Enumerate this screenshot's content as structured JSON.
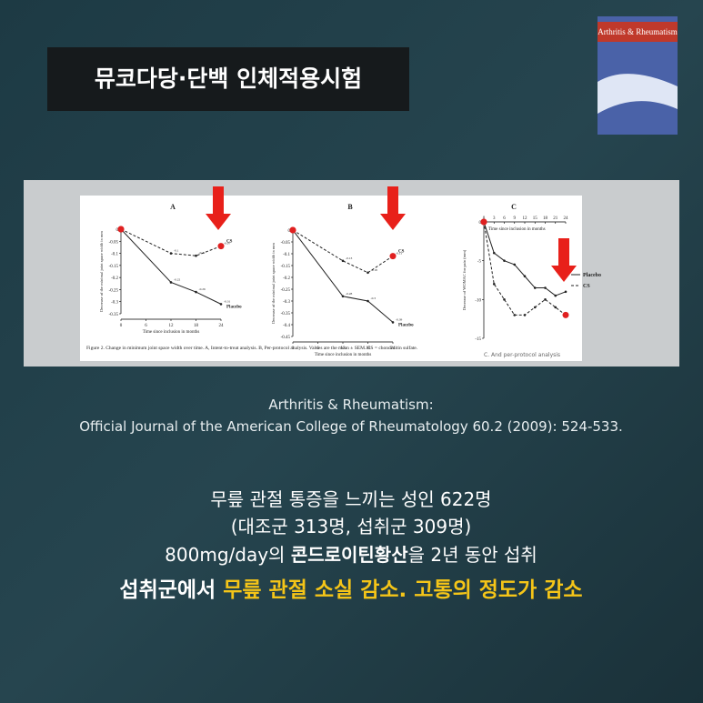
{
  "badge": "뮤코다당·단백 인체적용시험",
  "journal_cover": {
    "title": "Arthritis & Rheumatism"
  },
  "figure": {
    "panels": [
      {
        "label": "A",
        "y_label": "Decrease of the minimal joint space width in mm",
        "x_label": "Time since inclusion in months",
        "x": [
          0,
          12,
          18,
          24
        ],
        "xlim": [
          0,
          24
        ],
        "xticks": [
          0,
          6,
          12,
          18,
          24
        ],
        "ylim": [
          0,
          -0.35
        ],
        "yticks": [
          0,
          -0.05,
          -0.1,
          -0.15,
          -0.2,
          -0.25,
          -0.3,
          -0.35
        ],
        "series": [
          {
            "name": "CS",
            "values": [
              0,
              -0.1,
              -0.11,
              -0.07
            ]
          },
          {
            "name": "Placebo",
            "values": [
              0,
              -0.22,
              -0.26,
              -0.31
            ]
          }
        ]
      },
      {
        "label": "B",
        "y_label": "Decrease of the minimal joint space width in mm",
        "x_label": "Time since inclusion in months",
        "x": [
          0,
          12,
          18,
          24
        ],
        "xlim": [
          0,
          24
        ],
        "xticks": [
          0,
          6,
          12,
          18,
          24
        ],
        "ylim": [
          0,
          -0.45
        ],
        "yticks": [
          0,
          -0.05,
          -0.1,
          -0.15,
          -0.2,
          -0.25,
          -0.3,
          -0.35,
          -0.4,
          -0.45
        ],
        "series": [
          {
            "name": "CS",
            "values": [
              0,
              -0.13,
              -0.18,
              -0.11
            ]
          },
          {
            "name": "Placebo",
            "values": [
              0,
              -0.28,
              -0.3,
              -0.39
            ]
          }
        ]
      },
      {
        "label": "C",
        "y_label": "Decrease of WOMAC for pain (mm)",
        "x_label": "Time since inclusion in months",
        "x": [
          0,
          3,
          6,
          9,
          12,
          15,
          18,
          21,
          24
        ],
        "xlim": [
          0,
          24
        ],
        "xticks": [
          0,
          3,
          6,
          9,
          12,
          15,
          18,
          21,
          24
        ],
        "ylim": [
          0,
          -15
        ],
        "yticks": [
          0,
          -5,
          -10,
          -15
        ],
        "series": [
          {
            "name": "Placebo",
            "values": [
              0,
              -4,
              -5,
              -5.5,
              -7,
              -8.5,
              -8.5,
              -9.5,
              -9
            ]
          },
          {
            "name": "CS",
            "values": [
              0,
              -8,
              -10,
              -12,
              -12,
              -11,
              -10,
              -11,
              -12
            ]
          }
        ],
        "note": "C. And per-protocol analysis"
      }
    ],
    "caption": "Figure 2. Change in minimum joint space width over time. A, Intent-to-treat analysis. B, Per-protocol analysis. Values are the mean ± SEM. CS = chondroitin sulfate."
  },
  "citation": [
    "Arthritis & Rheumatism:",
    "Official Journal of the American College of Rheumatology 60.2 (2009): 524-533."
  ],
  "body": {
    "line1": "무릎 관절 통증을 느끼는 성인 622명",
    "line2": "(대조군 313명, 섭취군 309명)",
    "line3": [
      "800mg/day의 ",
      "콘드로이틴황산",
      "을 2년 동안 섭취"
    ],
    "line4": [
      "섭취군에서 ",
      "무릎 관절 소실 감소. 고통의 정도가 감소"
    ]
  }
}
